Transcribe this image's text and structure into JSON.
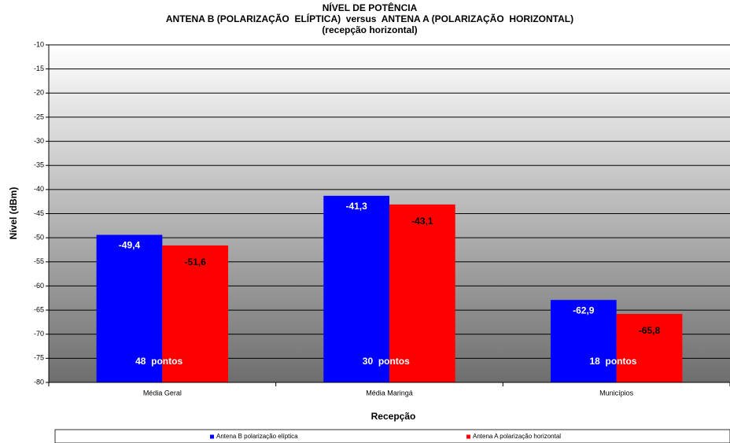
{
  "chart_data": {
    "type": "bar",
    "title": [
      "NÍVEL DE POTÊNCIA",
      "ANTENA B (POLARIZAÇÃO  ELÍPTICA)  versus  ANTENA A (POLARIZAÇÃO  HORIZONTAL)",
      "(recepção horizontal)"
    ],
    "x_label": "Recepção",
    "y_label": "Nível (dBm)",
    "categories": [
      "Média Geral",
      "Média Maringá",
      "Municípios"
    ],
    "series": [
      {
        "name": "Antena B polarização elíptica",
        "color": "#0000ff",
        "values": [
          -49.4,
          -41.3,
          -62.9
        ],
        "value_labels": [
          "-49,4",
          "-41,3",
          "-62,9"
        ]
      },
      {
        "name": "Antena A polarização horizontal",
        "color": "#ff0000",
        "values": [
          -51.6,
          -43.1,
          -65.8
        ],
        "value_labels": [
          "-51,6",
          "-43,1",
          "-65,8"
        ]
      }
    ],
    "annotations": [
      "48  pontos",
      "30  pontos",
      "18  pontos"
    ],
    "ylim": [
      -80,
      -10
    ],
    "yticks": [
      -10,
      -15,
      -20,
      -25,
      -30,
      -35,
      -40,
      -45,
      -50,
      -55,
      -60,
      -65,
      -70,
      -75,
      -80
    ],
    "grid": true,
    "legend": "bottom"
  }
}
